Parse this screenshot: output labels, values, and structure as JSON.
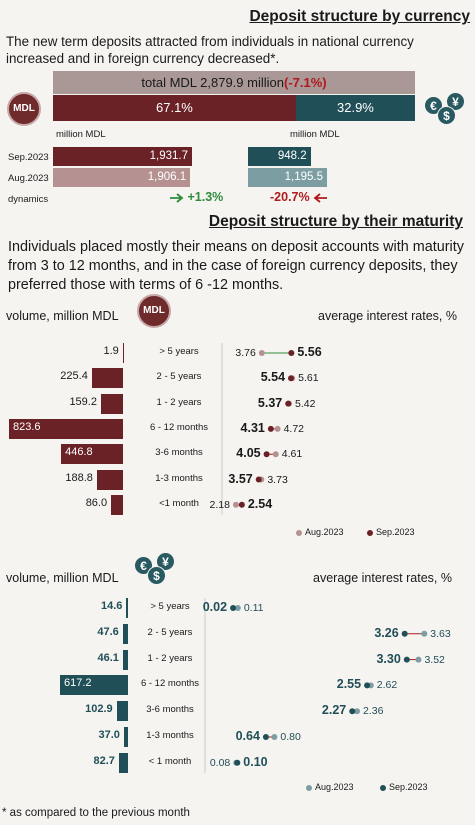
{
  "colors": {
    "mdl_dark": "#6b2226",
    "mdl_light": "#b59291",
    "fx_dark": "#214f58",
    "fx_light": "#7c9ea2",
    "total_bar": "#a99896",
    "positive": "#2e8b3a",
    "negative": "#b0191d"
  },
  "section1": {
    "title": "Deposit structure by currency",
    "text": "The new term deposits attracted from individuals in national currency increased and in foreign currency decreased*.",
    "total_label": "total MDL 2,879.9 million",
    "total_change": "(-7.1%)",
    "mdl_share": 67.1,
    "fx_share": 32.9,
    "mdl_share_label": "67.1%",
    "fx_share_label": "32.9%",
    "mdl_badge": "MDL",
    "fx_icon_symbols": [
      "€",
      "$",
      "¥"
    ],
    "mdl_unit": "million MDL",
    "fx_unit": "million MDL",
    "rows": [
      {
        "label": "Sep.2023",
        "mdl": 1931.7,
        "mdl_label": "1,931.7",
        "fx": 948.2,
        "fx_label": "948.2"
      },
      {
        "label": "Aug.2023",
        "mdl": 1906.1,
        "mdl_label": "1,906.1",
        "fx": 1195.5,
        "fx_label": "1,195.5"
      }
    ],
    "dynamics_label": "dynamics",
    "mdl_dynamics": "+1.3%",
    "fx_dynamics": "-20.7%"
  },
  "section2": {
    "title": "Deposit structure by their maturity",
    "text": "Individuals placed mostly their means on deposit accounts with maturity from 3 to 12 months, and in the case of foreign currency deposits, they preferred those with terms of 6 -12 months."
  },
  "chart_data": [
    {
      "type": "bar",
      "currency": "MDL",
      "volume_title": "volume, million MDL",
      "rates_title": "average interest rates, %",
      "badge": "MDL",
      "categories": [
        "> 5 years",
        "2 - 5 years",
        "1 - 2 years",
        "6 - 12 months",
        "3-6 months",
        "1-3 months",
        "<1 month"
      ],
      "volume": [
        1.9,
        225.4,
        159.2,
        823.6,
        446.8,
        188.8,
        86.0
      ],
      "volume_labels": [
        "1.9",
        "225.4",
        "159.2",
        "823.6",
        "446.8",
        "188.8",
        "86.0"
      ],
      "rates": {
        "Aug.2023": [
          3.76,
          5.61,
          5.42,
          4.72,
          4.61,
          3.73,
          2.18
        ],
        "Sep.2023": [
          5.56,
          5.54,
          5.37,
          4.31,
          4.05,
          3.57,
          2.54
        ]
      },
      "aug_labels": [
        "3.76",
        "5.61",
        "5.42",
        "4.72",
        "4.61",
        "3.73",
        "2.18"
      ],
      "sep_labels": [
        "5.56",
        "5.54",
        "5.37",
        "4.31",
        "4.05",
        "3.57",
        "2.54"
      ],
      "legend": [
        "Aug.2023",
        "Sep.2023"
      ]
    },
    {
      "type": "bar",
      "currency": "foreign currency",
      "volume_title": "volume, million MDL",
      "rates_title": "average interest rates, %",
      "icon_symbols": [
        "€",
        "$",
        "¥"
      ],
      "categories": [
        "> 5 years",
        "2 - 5 years",
        "1 - 2 years",
        "6 - 12 months",
        "3-6 months",
        "1-3 months",
        "< 1 month"
      ],
      "volume": [
        14.6,
        47.6,
        46.1,
        617.2,
        102.9,
        37.0,
        82.7
      ],
      "volume_labels": [
        "14.6",
        "47.6",
        "46.1",
        "617.2",
        "102.9",
        "37.0",
        "82.7"
      ],
      "rates": {
        "Aug.2023": [
          0.11,
          3.63,
          3.52,
          2.62,
          2.36,
          0.8,
          0.08
        ],
        "Sep.2023": [
          0.02,
          3.26,
          3.3,
          2.55,
          2.27,
          0.64,
          0.1
        ]
      },
      "aug_labels": [
        "0.11",
        "3.63",
        "3.52",
        "2.62",
        "2.36",
        "0.80",
        "0.08"
      ],
      "sep_labels": [
        "0.02",
        "3.26",
        "3.30",
        "2.55",
        "2.27",
        "0.64",
        "0.10"
      ],
      "legend": [
        "Aug.2023",
        "Sep.2023"
      ]
    }
  ],
  "footnote": "* as compared to the previous month"
}
